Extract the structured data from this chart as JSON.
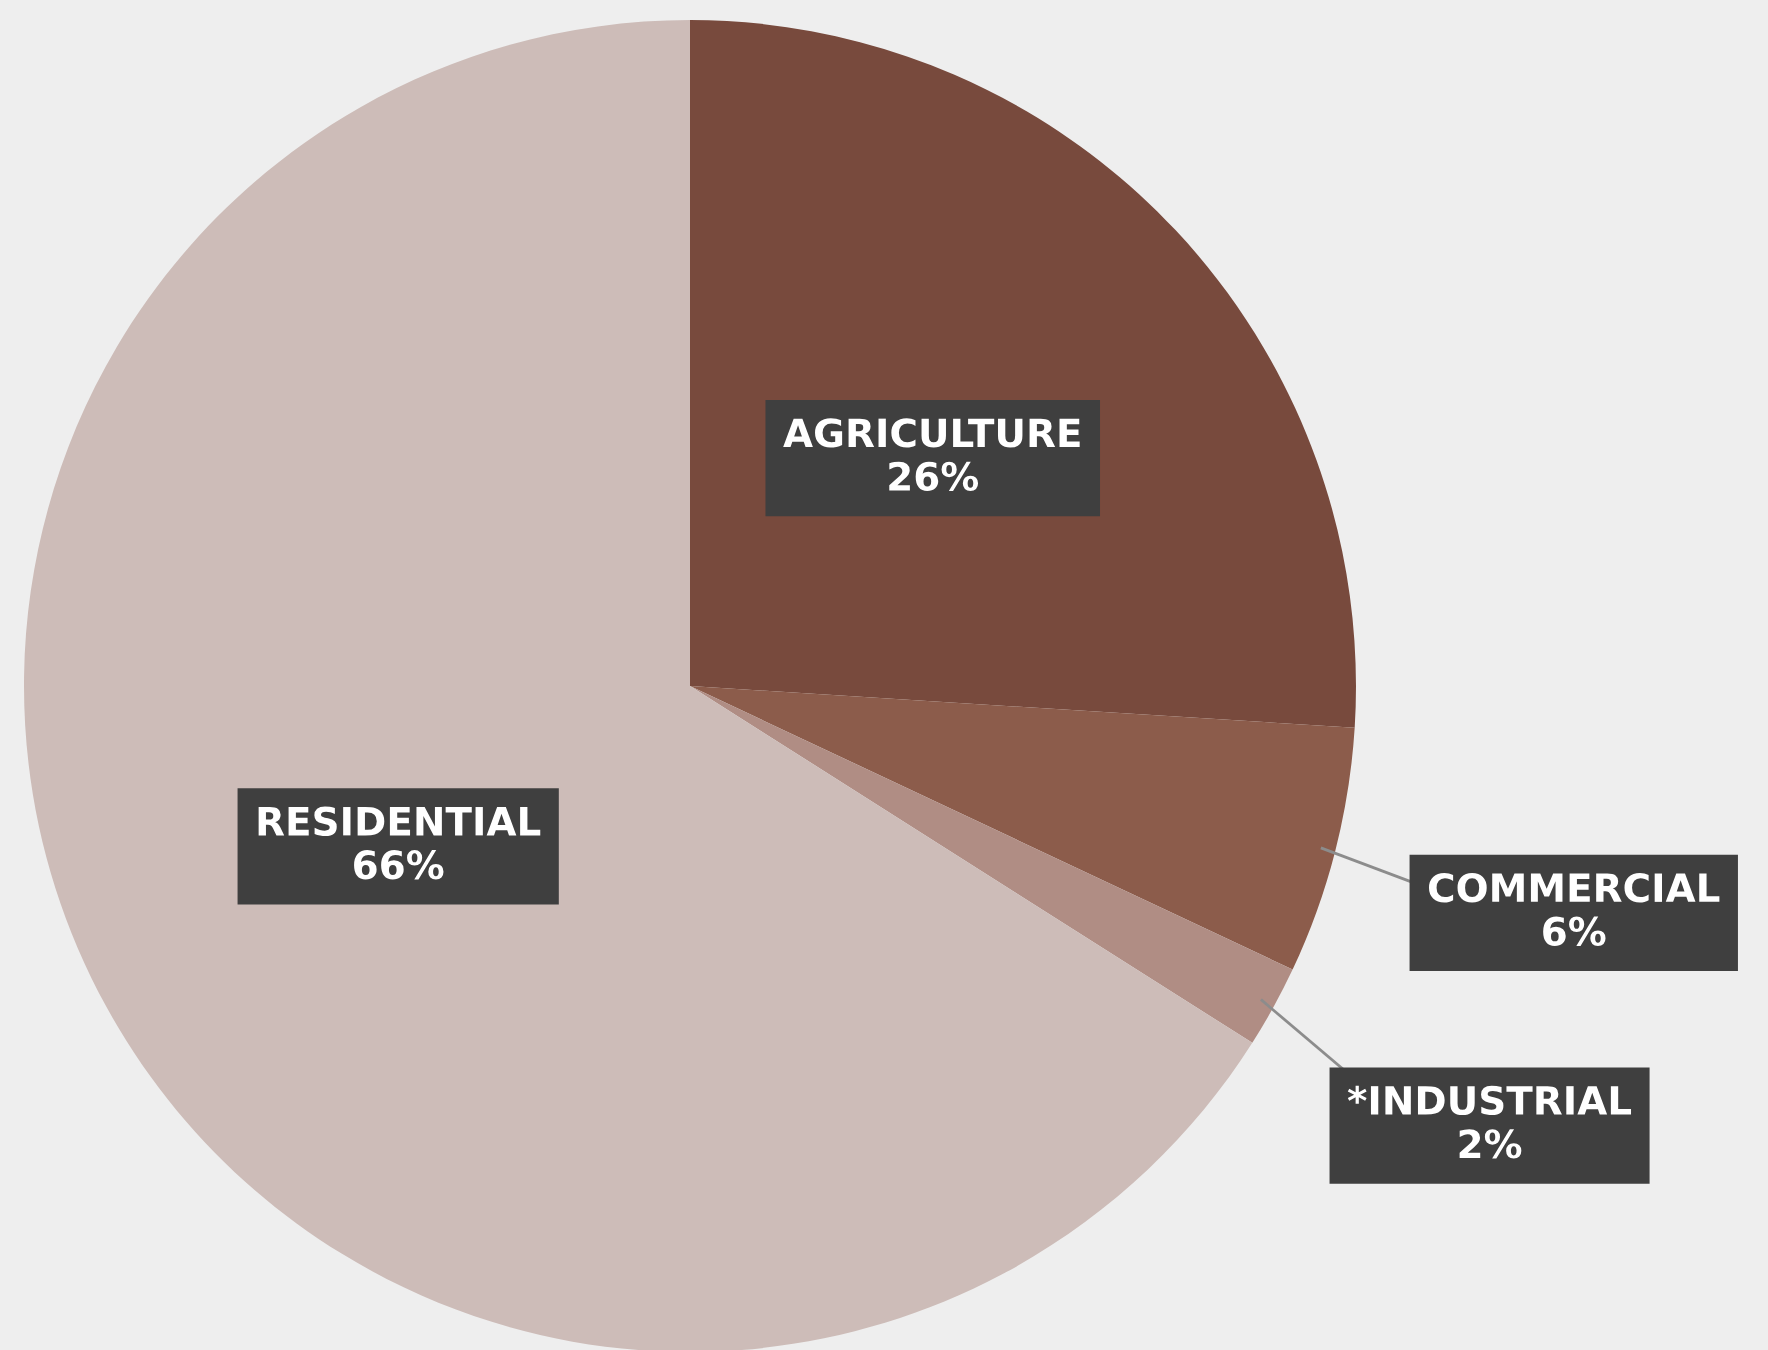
{
  "chart_data": {
    "type": "pie",
    "categories": [
      "AGRICULTURE",
      "COMMERCIAL",
      "*INDUSTRIAL",
      "RESIDENTIAL"
    ],
    "values": [
      26,
      6,
      2,
      66
    ],
    "value_labels": [
      "26%",
      "6%",
      "2%",
      "66%"
    ],
    "colors": [
      "#784a3d",
      "#8c5c4b",
      "#b08d84",
      "#cdbcb8"
    ]
  }
}
